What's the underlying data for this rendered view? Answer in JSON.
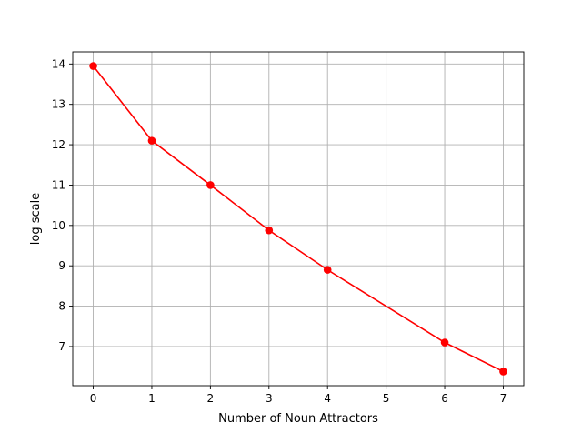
{
  "chart_data": {
    "type": "line",
    "title": "",
    "xlabel": "Number of Noun Attractors",
    "ylabel": "log scale",
    "x_ticks": [
      0,
      1,
      2,
      3,
      4,
      5,
      6,
      7
    ],
    "y_ticks": [
      7,
      8,
      9,
      10,
      11,
      12,
      13,
      14
    ],
    "xlim": [
      -0.35,
      7.35
    ],
    "ylim": [
      6.03,
      14.3
    ],
    "grid": true,
    "series": [
      {
        "color": "#ff0000",
        "marker": "circle",
        "x": [
          0,
          1,
          2,
          3,
          4,
          6,
          7
        ],
        "y": [
          13.95,
          12.1,
          11.0,
          9.88,
          8.9,
          7.1,
          6.38
        ]
      }
    ]
  }
}
